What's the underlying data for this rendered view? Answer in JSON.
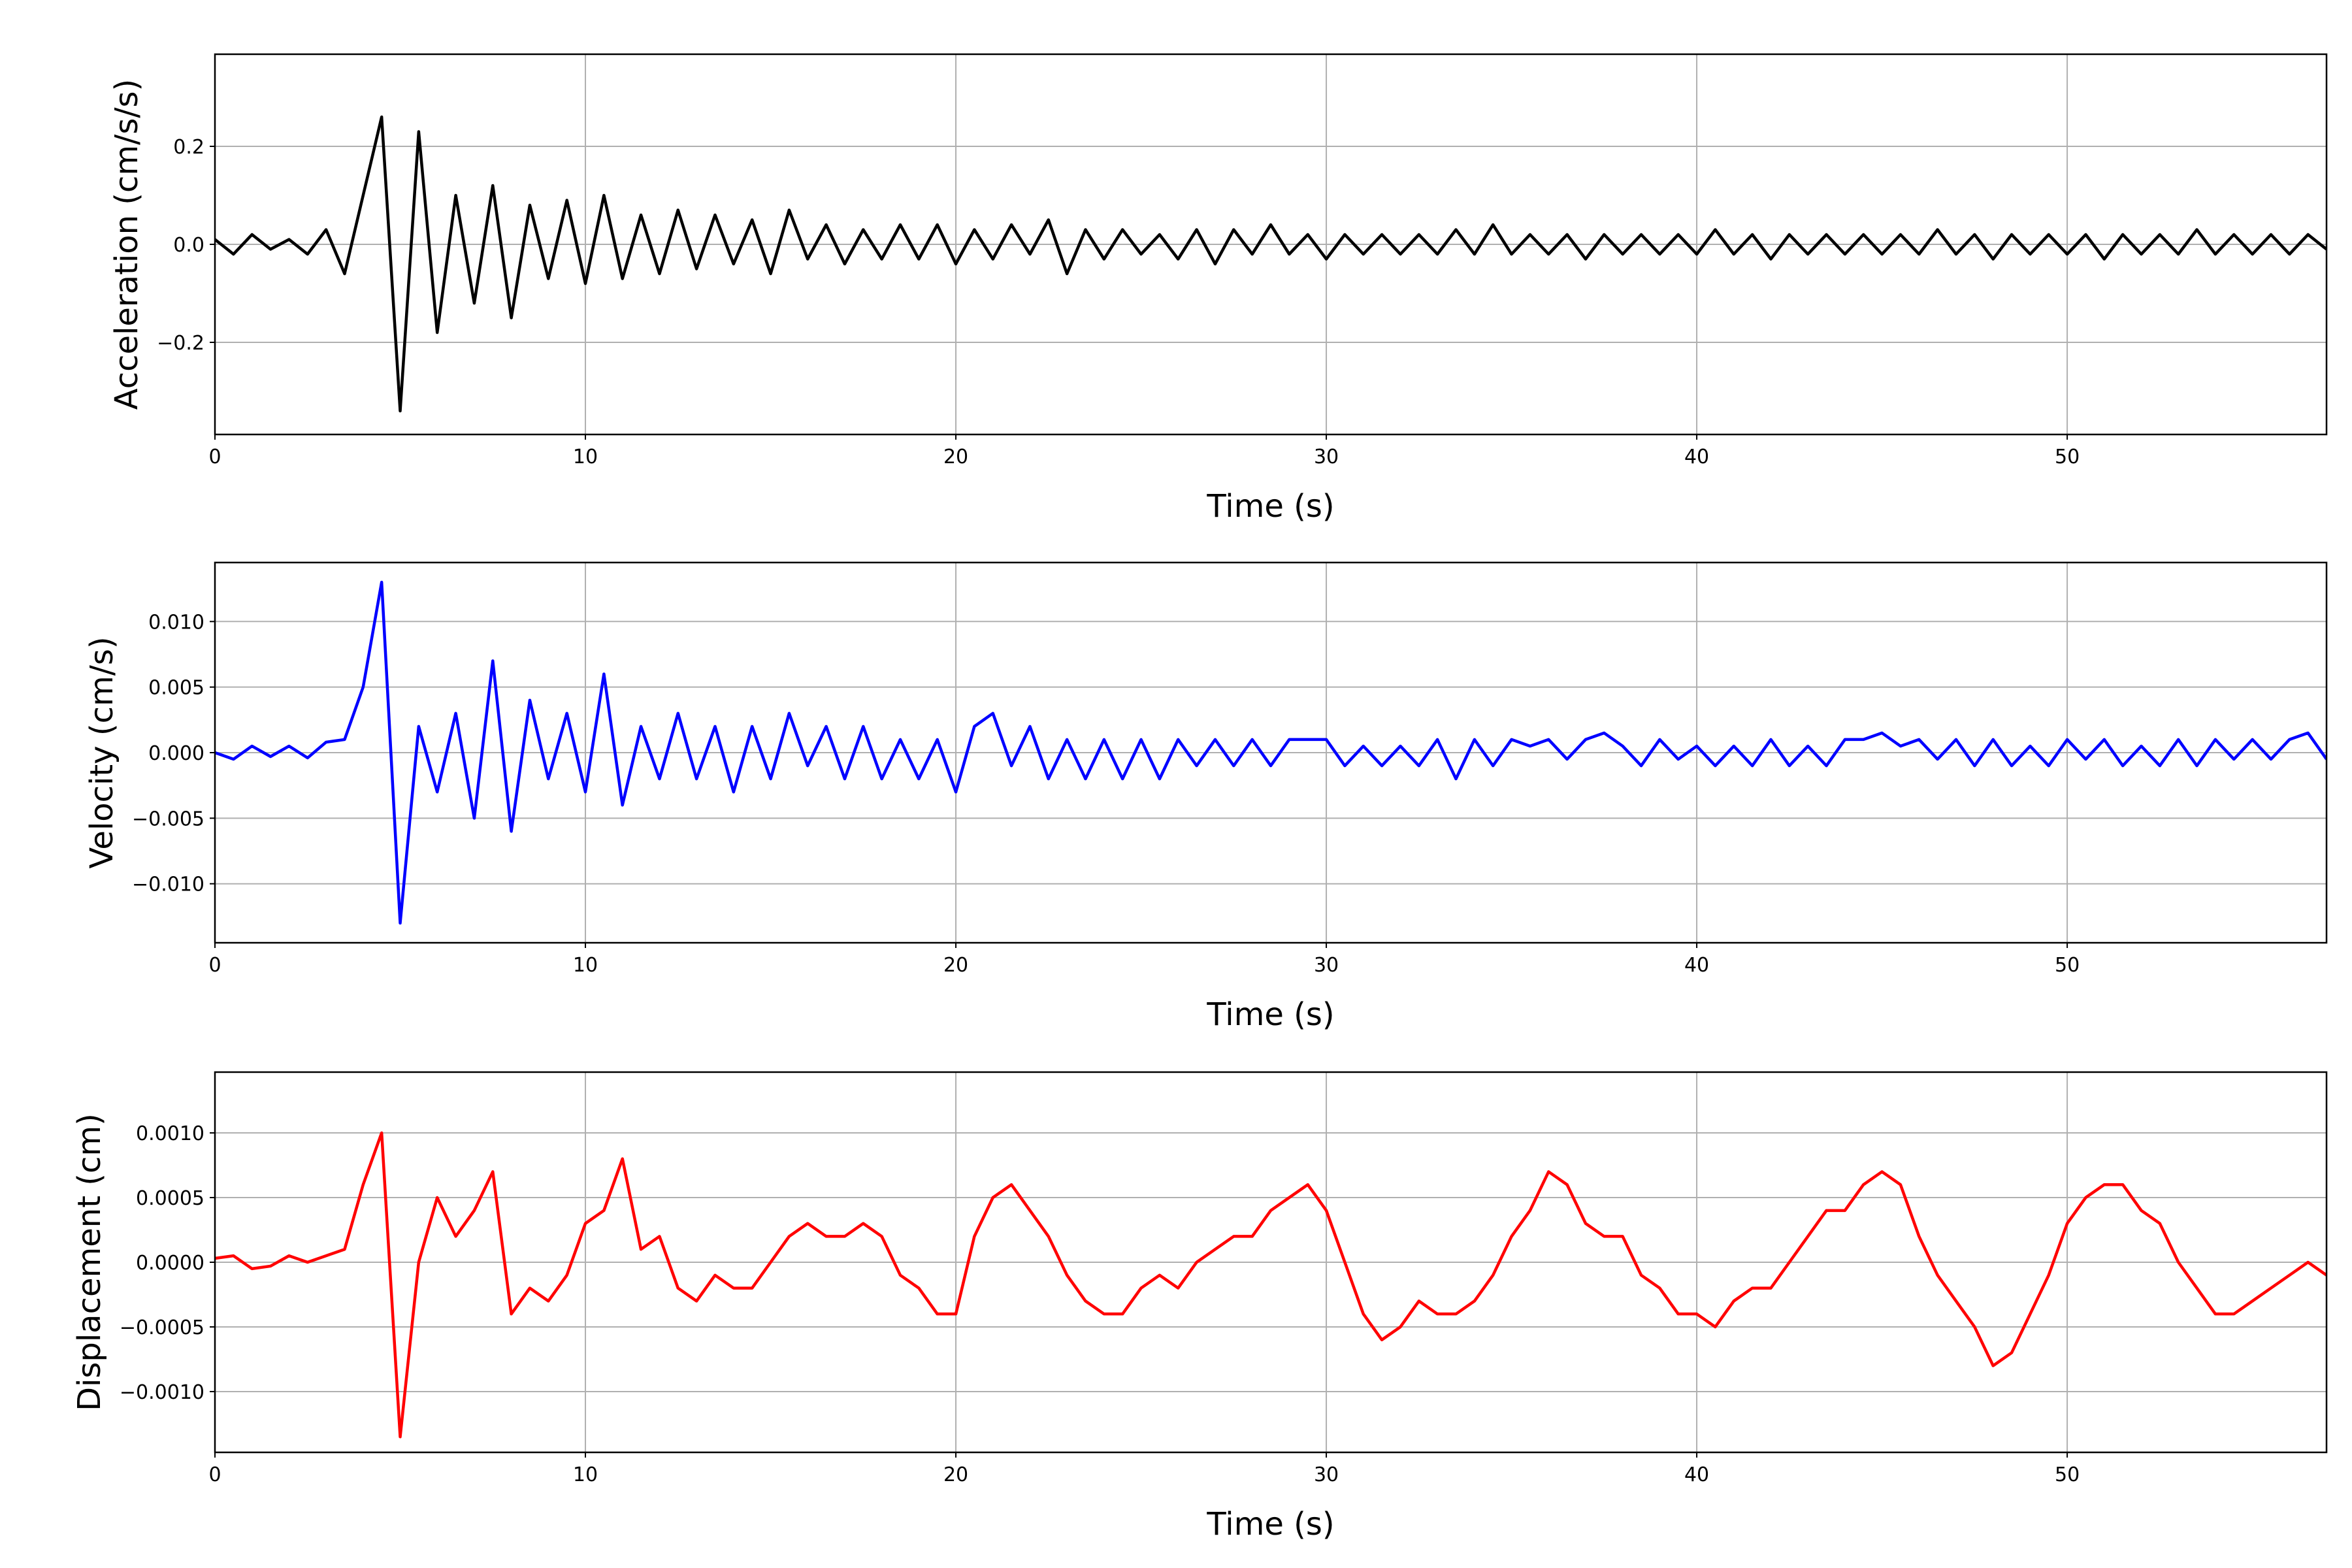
{
  "chart_data": [
    {
      "type": "line",
      "ylabel": "Acceleration (cm/s/s)",
      "xlabel": "Time (s)",
      "color": "#000000",
      "grid": true,
      "xlim": [
        0,
        57
      ],
      "xticks": [
        0,
        10,
        20,
        30,
        40,
        50
      ],
      "ylim": [
        -0.388,
        0.388
      ],
      "yticks": [
        {
          "value": -0.2,
          "label": "−0.2"
        },
        {
          "value": 0,
          "label": "0.0"
        },
        {
          "value": 0.2,
          "label": "0.2"
        }
      ],
      "x": [
        0,
        0.5,
        1,
        1.5,
        2,
        2.5,
        3,
        3.5,
        4,
        4.5,
        5,
        5.5,
        6,
        6.5,
        7,
        7.5,
        8,
        8.5,
        9,
        9.5,
        10,
        10.5,
        11,
        11.5,
        12,
        12.5,
        13,
        13.5,
        14,
        14.5,
        15,
        15.5,
        16,
        16.5,
        17,
        17.5,
        18,
        18.5,
        19,
        19.5,
        20,
        20.5,
        21,
        21.5,
        22,
        22.5,
        23,
        23.5,
        24,
        24.5,
        25,
        25.5,
        26,
        26.5,
        27,
        27.5,
        28,
        28.5,
        29,
        29.5,
        30,
        30.5,
        31,
        31.5,
        32,
        32.5,
        33,
        33.5,
        34,
        34.5,
        35,
        35.5,
        36,
        36.5,
        37,
        37.5,
        38,
        38.5,
        39,
        39.5,
        40,
        40.5,
        41,
        41.5,
        42,
        42.5,
        43,
        43.5,
        44,
        44.5,
        45,
        45.5,
        46,
        46.5,
        47,
        47.5,
        48,
        48.5,
        49,
        49.5,
        50,
        50.5,
        51,
        51.5,
        52,
        52.5,
        53,
        53.5,
        54,
        54.5,
        55,
        55.5,
        56,
        56.5,
        57
      ],
      "values": [
        0.01,
        -0.02,
        0.02,
        -0.01,
        0.01,
        -0.02,
        0.03,
        -0.06,
        0.1,
        0.26,
        -0.34,
        0.23,
        -0.18,
        0.1,
        -0.12,
        0.12,
        -0.15,
        0.08,
        -0.07,
        0.09,
        -0.08,
        0.1,
        -0.07,
        0.06,
        -0.06,
        0.07,
        -0.05,
        0.06,
        -0.04,
        0.05,
        -0.06,
        0.07,
        -0.03,
        0.04,
        -0.04,
        0.03,
        -0.03,
        0.04,
        -0.03,
        0.04,
        -0.04,
        0.03,
        -0.03,
        0.04,
        -0.02,
        0.05,
        -0.06,
        0.03,
        -0.03,
        0.03,
        -0.02,
        0.02,
        -0.03,
        0.03,
        -0.04,
        0.03,
        -0.02,
        0.04,
        -0.02,
        0.02,
        -0.03,
        0.02,
        -0.02,
        0.02,
        -0.02,
        0.02,
        -0.02,
        0.03,
        -0.02,
        0.04,
        -0.02,
        0.02,
        -0.02,
        0.02,
        -0.03,
        0.02,
        -0.02,
        0.02,
        -0.02,
        0.02,
        -0.02,
        0.03,
        -0.02,
        0.02,
        -0.03,
        0.02,
        -0.02,
        0.02,
        -0.02,
        0.02,
        -0.02,
        0.02,
        -0.02,
        0.03,
        -0.02,
        0.02,
        -0.03,
        0.02,
        -0.02,
        0.02,
        -0.02,
        0.02,
        -0.03,
        0.02,
        -0.02,
        0.02,
        -0.02,
        0.03,
        -0.02,
        0.02,
        -0.02,
        0.02,
        -0.02,
        0.02,
        -0.01
      ]
    },
    {
      "type": "line",
      "ylabel": "Velocity (cm/s)",
      "xlabel": "Time (s)",
      "color": "#0000ff",
      "grid": true,
      "xlim": [
        0,
        57
      ],
      "xticks": [
        0,
        10,
        20,
        30,
        40,
        50
      ],
      "ylim": [
        -0.0145,
        0.0145
      ],
      "yticks": [
        {
          "value": -0.01,
          "label": "−0.010"
        },
        {
          "value": -0.005,
          "label": "−0.005"
        },
        {
          "value": 0,
          "label": "0.000"
        },
        {
          "value": 0.005,
          "label": "0.005"
        },
        {
          "value": 0.01,
          "label": "0.010"
        }
      ],
      "x": [
        0,
        0.5,
        1,
        1.5,
        2,
        2.5,
        3,
        3.5,
        4,
        4.5,
        5,
        5.5,
        6,
        6.5,
        7,
        7.5,
        8,
        8.5,
        9,
        9.5,
        10,
        10.5,
        11,
        11.5,
        12,
        12.5,
        13,
        13.5,
        14,
        14.5,
        15,
        15.5,
        16,
        16.5,
        17,
        17.5,
        18,
        18.5,
        19,
        19.5,
        20,
        20.5,
        21,
        21.5,
        22,
        22.5,
        23,
        23.5,
        24,
        24.5,
        25,
        25.5,
        26,
        26.5,
        27,
        27.5,
        28,
        28.5,
        29,
        29.5,
        30,
        30.5,
        31,
        31.5,
        32,
        32.5,
        33,
        33.5,
        34,
        34.5,
        35,
        35.5,
        36,
        36.5,
        37,
        37.5,
        38,
        38.5,
        39,
        39.5,
        40,
        40.5,
        41,
        41.5,
        42,
        42.5,
        43,
        43.5,
        44,
        44.5,
        45,
        45.5,
        46,
        46.5,
        47,
        47.5,
        48,
        48.5,
        49,
        49.5,
        50,
        50.5,
        51,
        51.5,
        52,
        52.5,
        53,
        53.5,
        54,
        54.5,
        55,
        55.5,
        56,
        56.5,
        57
      ],
      "values": [
        0.0,
        -0.0005,
        0.0005,
        -0.0003,
        0.0005,
        -0.0004,
        0.0008,
        0.001,
        0.005,
        0.013,
        -0.013,
        0.002,
        -0.003,
        0.003,
        -0.005,
        0.007,
        -0.006,
        0.004,
        -0.002,
        0.003,
        -0.003,
        0.006,
        -0.004,
        0.002,
        -0.002,
        0.003,
        -0.002,
        0.002,
        -0.003,
        0.002,
        -0.002,
        0.003,
        -0.001,
        0.002,
        -0.002,
        0.002,
        -0.002,
        0.001,
        -0.002,
        0.001,
        -0.003,
        0.002,
        0.003,
        -0.001,
        0.002,
        -0.002,
        0.001,
        -0.002,
        0.001,
        -0.002,
        0.001,
        -0.002,
        0.001,
        -0.001,
        0.001,
        -0.001,
        0.001,
        -0.001,
        0.001,
        0.001,
        0.001,
        -0.001,
        0.0005,
        -0.001,
        0.0005,
        -0.001,
        0.001,
        -0.002,
        0.001,
        -0.001,
        0.001,
        0.0005,
        0.001,
        -0.0005,
        0.001,
        0.0015,
        0.0005,
        -0.001,
        0.001,
        -0.0005,
        0.0005,
        -0.001,
        0.0005,
        -0.001,
        0.001,
        -0.001,
        0.0005,
        -0.001,
        0.001,
        0.001,
        0.0015,
        0.0005,
        0.001,
        -0.0005,
        0.001,
        -0.001,
        0.001,
        -0.001,
        0.0005,
        -0.001,
        0.001,
        -0.0005,
        0.001,
        -0.001,
        0.0005,
        -0.001,
        0.001,
        -0.001,
        0.001,
        -0.0005,
        0.001,
        -0.0005,
        0.001,
        0.0015,
        -0.0005
      ]
    },
    {
      "type": "line",
      "ylabel": "Displacement (cm)",
      "xlabel": "Time (s)",
      "color": "#ff0000",
      "grid": true,
      "xlim": [
        0,
        57
      ],
      "xticks": [
        0,
        10,
        20,
        30,
        40,
        50
      ],
      "ylim": [
        -0.00147,
        0.00147
      ],
      "yticks": [
        {
          "value": -0.001,
          "label": "−0.0010"
        },
        {
          "value": -0.0005,
          "label": "−0.0005"
        },
        {
          "value": 0,
          "label": "0.0000"
        },
        {
          "value": 0.0005,
          "label": "0.0005"
        },
        {
          "value": 0.001,
          "label": "0.0010"
        }
      ],
      "x": [
        0,
        0.5,
        1,
        1.5,
        2,
        2.5,
        3,
        3.5,
        4,
        4.5,
        5,
        5.5,
        6,
        6.5,
        7,
        7.5,
        8,
        8.5,
        9,
        9.5,
        10,
        10.5,
        11,
        11.5,
        12,
        12.5,
        13,
        13.5,
        14,
        14.5,
        15,
        15.5,
        16,
        16.5,
        17,
        17.5,
        18,
        18.5,
        19,
        19.5,
        20,
        20.5,
        21,
        21.5,
        22,
        22.5,
        23,
        23.5,
        24,
        24.5,
        25,
        25.5,
        26,
        26.5,
        27,
        27.5,
        28,
        28.5,
        29,
        29.5,
        30,
        30.5,
        31,
        31.5,
        32,
        32.5,
        33,
        33.5,
        34,
        34.5,
        35,
        35.5,
        36,
        36.5,
        37,
        37.5,
        38,
        38.5,
        39,
        39.5,
        40,
        40.5,
        41,
        41.5,
        42,
        42.5,
        43,
        43.5,
        44,
        44.5,
        45,
        45.5,
        46,
        46.5,
        47,
        47.5,
        48,
        48.5,
        49,
        49.5,
        50,
        50.5,
        51,
        51.5,
        52,
        52.5,
        53,
        53.5,
        54,
        54.5,
        55,
        55.5,
        56,
        56.5,
        57
      ],
      "values": [
        3e-05,
        5e-05,
        -5e-05,
        -3e-05,
        5e-05,
        0.0,
        5e-05,
        0.0001,
        0.0006,
        0.001,
        -0.00135,
        0.0,
        0.0005,
        0.0002,
        0.0004,
        0.0007,
        -0.0004,
        -0.0002,
        -0.0003,
        -0.0001,
        0.0003,
        0.0004,
        0.0008,
        0.0001,
        0.0002,
        -0.0002,
        -0.0003,
        -0.0001,
        -0.0002,
        -0.0002,
        0.0,
        0.0002,
        0.0003,
        0.0002,
        0.0002,
        0.0003,
        0.0002,
        -0.0001,
        -0.0002,
        -0.0004,
        -0.0004,
        0.0002,
        0.0005,
        0.0006,
        0.0004,
        0.0002,
        -0.0001,
        -0.0003,
        -0.0004,
        -0.0004,
        -0.0002,
        -0.0001,
        -0.0002,
        0.0,
        0.0001,
        0.0002,
        0.0002,
        0.0004,
        0.0005,
        0.0006,
        0.0004,
        0.0,
        -0.0004,
        -0.0006,
        -0.0005,
        -0.0003,
        -0.0004,
        -0.0004,
        -0.0003,
        -0.0001,
        0.0002,
        0.0004,
        0.0007,
        0.0006,
        0.0003,
        0.0002,
        0.0002,
        -0.0001,
        -0.0002,
        -0.0004,
        -0.0004,
        -0.0005,
        -0.0003,
        -0.0002,
        -0.0002,
        0.0,
        0.0002,
        0.0004,
        0.0004,
        0.0006,
        0.0007,
        0.0006,
        0.0002,
        -0.0001,
        -0.0003,
        -0.0005,
        -0.0008,
        -0.0007,
        -0.0004,
        -0.0001,
        0.0003,
        0.0005,
        0.0006,
        0.0006,
        0.0004,
        0.0003,
        0.0,
        -0.0002,
        -0.0004,
        -0.0004,
        -0.0003,
        -0.0002,
        -0.0001,
        0.0,
        -0.0001
      ]
    }
  ]
}
